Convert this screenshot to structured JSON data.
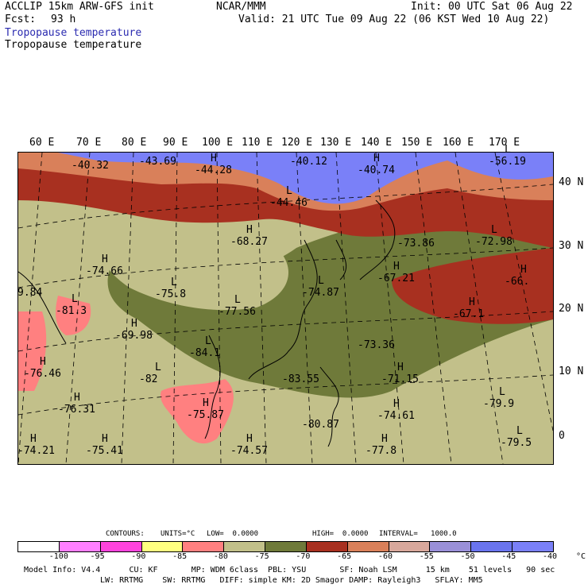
{
  "header": {
    "model": "ACCLIP 15km ARW-GFS init",
    "org": "NCAR/MMM",
    "init": "Init: 00 UTC Sat 06 Aug 22",
    "fcst_label": "Fcst:",
    "fcst_value": "93 h",
    "valid": "Valid: 21 UTC Tue 09 Aug 22 (06 KST Wed 10 Aug 22)",
    "field_title_1": "Tropopause temperature",
    "field_title_2": "Tropopause temperature"
  },
  "longitudes": [
    "60 E",
    "70 E",
    "80 E",
    "90 E",
    "100 E",
    "110 E",
    "120 E",
    "130 E",
    "140 E",
    "150 E",
    "160 E",
    "170 E"
  ],
  "latitudes": [
    "40 N",
    "30 N",
    "20 N",
    "10 N",
    "0"
  ],
  "map_labels": [
    {
      "mark": "",
      "value": "-40.32"
    },
    {
      "mark": "",
      "value": "-43.69"
    },
    {
      "mark": "H",
      "value": "-44.28"
    },
    {
      "mark": "",
      "value": "-40.12"
    },
    {
      "mark": "H",
      "value": "-40.74"
    },
    {
      "mark": "L",
      "value": "-56.19"
    },
    {
      "mark": "L",
      "value": "-44.46"
    },
    {
      "mark": "H",
      "value": "-68.27"
    },
    {
      "mark": "",
      "value": "-73.86"
    },
    {
      "mark": "L",
      "value": "-72.98"
    },
    {
      "mark": "H",
      "value": "-74.66"
    },
    {
      "mark": "",
      "value": "9.84"
    },
    {
      "mark": "H",
      "value": "-67.21"
    },
    {
      "mark": "H",
      "value": "-66."
    },
    {
      "mark": "L",
      "value": "-75.8"
    },
    {
      "mark": "L",
      "value": "-74.87"
    },
    {
      "mark": "L",
      "value": "-81.3"
    },
    {
      "mark": "L",
      "value": "-77.56"
    },
    {
      "mark": "H",
      "value": "-67.1"
    },
    {
      "mark": "H",
      "value": "-69.98"
    },
    {
      "mark": "",
      "value": "-73.36"
    },
    {
      "mark": "L",
      "value": "-84.1"
    },
    {
      "mark": "H",
      "value": "-76.46"
    },
    {
      "mark": "L",
      "value": "-82"
    },
    {
      "mark": "",
      "value": "-83.55"
    },
    {
      "mark": "H",
      "value": "-71.15"
    },
    {
      "mark": "H",
      "value": "-76.31"
    },
    {
      "mark": "H",
      "value": "-75.87"
    },
    {
      "mark": "",
      "value": "-80.87"
    },
    {
      "mark": "H",
      "value": "-74.61"
    },
    {
      "mark": "L",
      "value": "-79.9"
    },
    {
      "mark": "L",
      "value": "-79.5"
    },
    {
      "mark": "H",
      "value": "-74.21"
    },
    {
      "mark": "H",
      "value": "-75.41"
    },
    {
      "mark": "H",
      "value": "-74.57"
    },
    {
      "mark": "H",
      "value": "-77.8"
    }
  ],
  "legend": {
    "contours": "CONTOURS:",
    "units": "UNITS=°C",
    "low": "LOW=  0.0000",
    "high": "HIGH=  0.0000",
    "interval": "INTERVAL=   1000.0",
    "ticks": [
      "-100",
      "-95",
      "-90",
      "-85",
      "-80",
      "-75",
      "-70",
      "-65",
      "-60",
      "-55",
      "-50",
      "-45",
      "-40",
      "°C"
    ],
    "colors": [
      "#ffffff",
      "#ff7fff",
      "#ff44dd",
      "#ffff80",
      "#ff8080",
      "#c2c08a",
      "#6f7a3a",
      "#a83020",
      "#d9805a",
      "#d8a89c",
      "#9a90d8",
      "#6a74ee",
      "#7a80f8"
    ]
  },
  "footer": {
    "line1": "Model Info: V4.4      CU: KF       MP: WDM 6class  PBL: YSU       SF: Noah LSM      15 km    51 levels   90 sec",
    "line2": "LW: RRTMG    SW: RRTMG   DIFF: simple KM: 2D Smagor DAMP: Rayleigh3   SFLAY: MM5"
  }
}
